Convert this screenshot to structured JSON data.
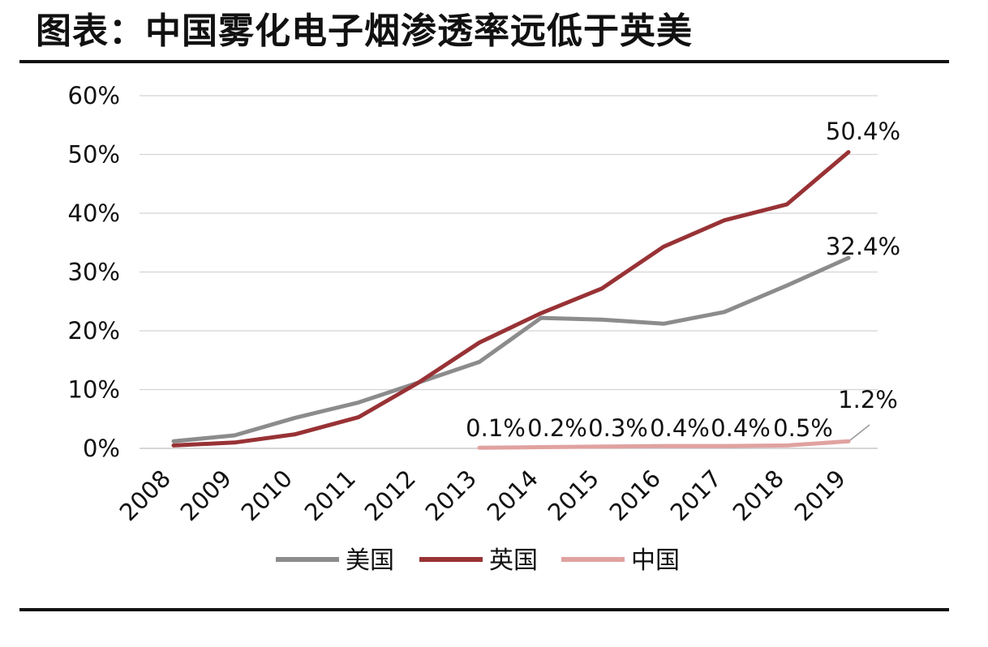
{
  "title": "图表：中国雾化电子烟渗透率远低于英美",
  "chart_data": {
    "type": "line",
    "title": "图表：中国雾化电子烟渗透率远低于英美",
    "xlabel": "",
    "ylabel": "",
    "categories": [
      "2008",
      "2009",
      "2010",
      "2011",
      "2012",
      "2013",
      "2014",
      "2015",
      "2016",
      "2017",
      "2018",
      "2019"
    ],
    "ylim": [
      0,
      60
    ],
    "yticks": [
      0,
      10,
      20,
      30,
      40,
      50,
      60
    ],
    "ytick_labels": [
      "0%",
      "10%",
      "20%",
      "30%",
      "40%",
      "50%",
      "60%"
    ],
    "grid": true,
    "legend_position": "bottom",
    "series": [
      {
        "name": "美国",
        "color": "#8c8c8c",
        "values": [
          1.2,
          2.2,
          5.2,
          7.8,
          11.2,
          14.7,
          22.2,
          21.9,
          21.2,
          23.2,
          27.7,
          32.4
        ],
        "labels": [
          null,
          null,
          null,
          null,
          null,
          null,
          null,
          null,
          null,
          null,
          null,
          "32.4%"
        ]
      },
      {
        "name": "英国",
        "color": "#983235",
        "values": [
          0.5,
          1.0,
          2.4,
          5.3,
          11.2,
          18.0,
          23.0,
          27.2,
          34.3,
          38.8,
          41.5,
          50.4
        ],
        "labels": [
          null,
          null,
          null,
          null,
          null,
          null,
          null,
          null,
          null,
          null,
          null,
          "50.4%"
        ]
      },
      {
        "name": "中国",
        "color": "#e0a2a0",
        "values": [
          null,
          null,
          null,
          null,
          null,
          0.1,
          0.2,
          0.3,
          0.4,
          0.4,
          0.5,
          1.2
        ],
        "labels": [
          null,
          null,
          null,
          null,
          null,
          "0.1%",
          "0.2%",
          "0.3%",
          "0.4%",
          "0.4%",
          "0.5%",
          "1.2%"
        ]
      }
    ]
  }
}
